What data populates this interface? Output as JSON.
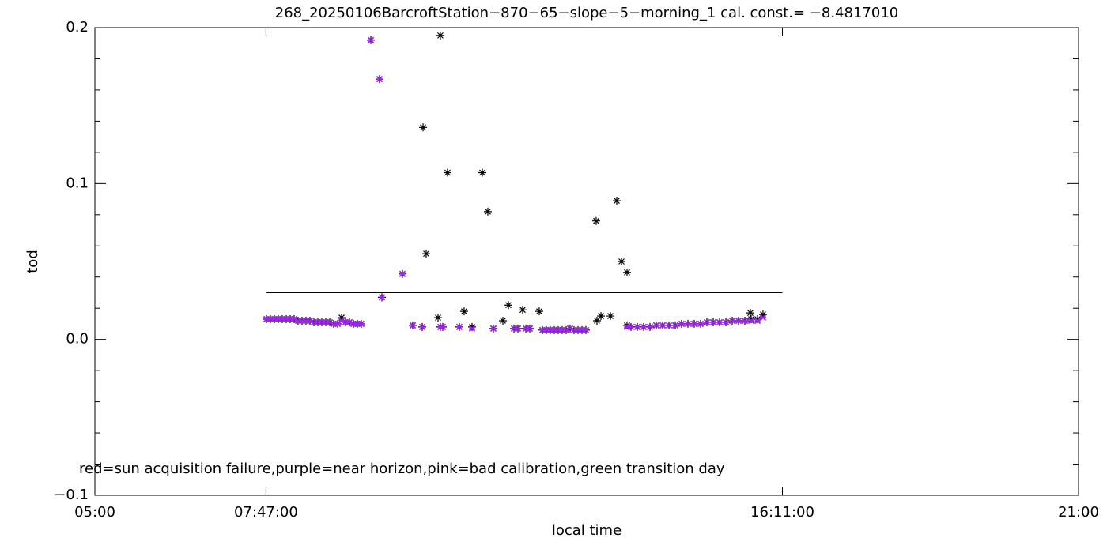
{
  "chart_data": {
    "type": "scatter",
    "title": "268_20250106BarcroftStation−870−65−slope−5−morning_1 cal. const.= −8.4817010",
    "x_label": "local time",
    "y_label": "tod",
    "annotation": "red=sun acquisition failure,purple=near horizon,pink=bad calibration,green transition day",
    "xlim": [
      5,
      21
    ],
    "xticks": [
      {
        "value": 5,
        "label": "05:00"
      },
      {
        "value": 7.7833,
        "label": "07:47:00"
      },
      {
        "value": 16.1833,
        "label": "16:11:00"
      },
      {
        "value": 21,
        "label": "21:00"
      }
    ],
    "ylim": [
      -0.1,
      0.2
    ],
    "yticks": [
      {
        "value": -0.1,
        "label": "−0.1"
      },
      {
        "value": 0,
        "label": "0.0"
      },
      0.1,
      0.2
    ],
    "yminor_ticks": [
      -0.08,
      -0.06,
      -0.04,
      -0.02,
      0.02,
      0.04,
      0.06,
      0.08,
      0.12,
      0.14,
      0.16,
      0.18
    ],
    "reference_line": {
      "color": "#000000",
      "x": [
        7.7833,
        16.1833
      ],
      "values": [
        0.03,
        0.03
      ]
    },
    "series": [
      {
        "color": "#000000",
        "marker": "asterisk",
        "x": [
          7.791,
          7.855,
          7.92,
          7.984,
          8.048,
          8.113,
          8.177,
          8.241,
          8.305,
          8.37,
          8.434,
          8.498,
          8.563,
          8.627,
          8.691,
          8.756,
          8.82,
          8.884,
          8.949,
          9.013,
          9.077,
          9.141,
          9.206,
          9.27,
          9.334,
          9.489,
          9.63,
          9.669,
          10.003,
          10.17,
          10.325,
          10.338,
          10.389,
          10.582,
          10.62,
          10.62,
          10.659,
          10.736,
          10.929,
          11.006,
          11.135,
          11.302,
          11.392,
          11.482,
          11.637,
          11.727,
          11.817,
          11.881,
          11.958,
          12.01,
          12.074,
          12.228,
          12.28,
          12.344,
          12.408,
          12.473,
          12.537,
          12.601,
          12.666,
          12.73,
          12.794,
          12.859,
          12.923,
          12.987,
          13.154,
          13.167,
          13.232,
          13.386,
          13.489,
          13.566,
          13.656,
          13.656,
          13.72,
          13.823,
          13.926,
          14.029,
          14.132,
          14.235,
          14.338,
          14.441,
          14.543,
          14.646,
          14.749,
          14.852,
          14.955,
          15.058,
          15.161,
          15.264,
          15.367,
          15.469,
          15.572,
          15.675,
          15.778,
          15.662,
          15.868
        ],
        "values": [
          0.013,
          0.013,
          0.013,
          0.013,
          0.013,
          0.013,
          0.013,
          0.013,
          0.012,
          0.012,
          0.012,
          0.012,
          0.011,
          0.011,
          0.011,
          0.011,
          0.011,
          0.01,
          0.01,
          0.014,
          0.011,
          0.011,
          0.01,
          0.01,
          0.01,
          0.192,
          0.167,
          0.027,
          0.042,
          0.009,
          0.008,
          0.136,
          0.055,
          0.014,
          0.195,
          0.008,
          0.008,
          0.107,
          0.008,
          0.018,
          0.008,
          0.107,
          0.082,
          0.007,
          0.012,
          0.022,
          0.007,
          0.007,
          0.019,
          0.007,
          0.007,
          0.018,
          0.006,
          0.006,
          0.006,
          0.006,
          0.006,
          0.006,
          0.006,
          0.007,
          0.006,
          0.006,
          0.006,
          0.006,
          0.076,
          0.012,
          0.015,
          0.015,
          0.089,
          0.05,
          0.043,
          0.009,
          0.008,
          0.008,
          0.008,
          0.008,
          0.009,
          0.009,
          0.009,
          0.009,
          0.01,
          0.01,
          0.01,
          0.01,
          0.011,
          0.011,
          0.011,
          0.011,
          0.012,
          0.012,
          0.012,
          0.013,
          0.013,
          0.017,
          0.016
        ]
      },
      {
        "color": "#a020f0",
        "marker": "cross",
        "x": [
          7.791,
          7.855,
          7.92,
          7.984,
          8.048,
          8.113,
          8.177,
          8.241,
          8.305,
          8.37,
          8.434,
          8.498,
          8.563,
          8.627,
          8.691,
          8.756,
          8.82,
          8.884,
          8.949,
          9.013,
          9.077,
          9.141,
          9.206,
          9.27,
          9.334,
          9.489,
          9.63,
          9.669,
          10.003,
          10.17,
          10.325,
          10.62,
          10.659,
          10.929,
          11.135,
          11.482,
          11.817,
          11.881,
          12.01,
          12.074,
          12.28,
          12.344,
          12.408,
          12.473,
          12.537,
          12.601,
          12.666,
          12.73,
          12.794,
          12.859,
          12.923,
          12.987,
          13.656,
          13.72,
          13.823,
          13.926,
          14.029,
          14.132,
          14.235,
          14.338,
          14.441,
          14.543,
          14.646,
          14.749,
          14.852,
          14.955,
          15.058,
          15.161,
          15.264,
          15.367,
          15.469,
          15.572,
          15.675,
          15.778,
          15.868
        ],
        "values": [
          0.013,
          0.013,
          0.013,
          0.013,
          0.013,
          0.013,
          0.013,
          0.013,
          0.012,
          0.012,
          0.012,
          0.012,
          0.011,
          0.011,
          0.011,
          0.011,
          0.011,
          0.01,
          0.01,
          0.012,
          0.011,
          0.011,
          0.01,
          0.01,
          0.01,
          0.192,
          0.167,
          0.027,
          0.042,
          0.009,
          0.008,
          0.008,
          0.008,
          0.008,
          0.007,
          0.007,
          0.007,
          0.007,
          0.007,
          0.007,
          0.006,
          0.006,
          0.006,
          0.006,
          0.006,
          0.006,
          0.006,
          0.007,
          0.006,
          0.006,
          0.006,
          0.006,
          0.008,
          0.008,
          0.008,
          0.008,
          0.008,
          0.009,
          0.009,
          0.009,
          0.009,
          0.01,
          0.01,
          0.01,
          0.01,
          0.011,
          0.011,
          0.011,
          0.011,
          0.012,
          0.012,
          0.012,
          0.012,
          0.012,
          0.014
        ]
      }
    ]
  }
}
